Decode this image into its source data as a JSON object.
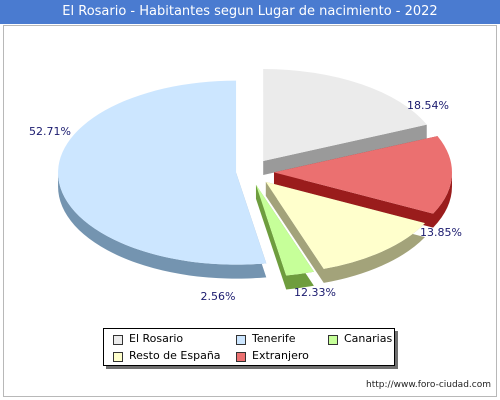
{
  "header": {
    "title": "El Rosario - Habitantes segun Lugar de nacimiento - 2022"
  },
  "chart_data": {
    "type": "pie",
    "title": "El Rosario - Habitantes segun Lugar de nacimiento - 2022",
    "slices": [
      {
        "name": "El Rosario",
        "value": 18.54,
        "label": "18.54%",
        "color": "#ebebeb",
        "side_color": "#9a9a9a"
      },
      {
        "name": "Extranjero",
        "value": 13.85,
        "label": "13.85%",
        "color": "#eb7070",
        "side_color": "#9a1c1c"
      },
      {
        "name": "Resto de España",
        "value": 12.33,
        "label": "12.33%",
        "color": "#ffffcc",
        "side_color": "#a3a37a"
      },
      {
        "name": "Canarias",
        "value": 2.56,
        "label": "2.56%",
        "color": "#c6ff99",
        "side_color": "#6e9d3e"
      },
      {
        "name": "Tenerife",
        "value": 52.71,
        "label": "52.71%",
        "color": "#cce6ff",
        "side_color": "#7494b0"
      }
    ],
    "legend_position": "bottom",
    "legend_order": [
      "El Rosario",
      "Tenerife",
      "Canarias",
      "Resto de España",
      "Extranjero"
    ]
  },
  "footer": {
    "watermark": "http://www.foro-ciudad.com"
  }
}
